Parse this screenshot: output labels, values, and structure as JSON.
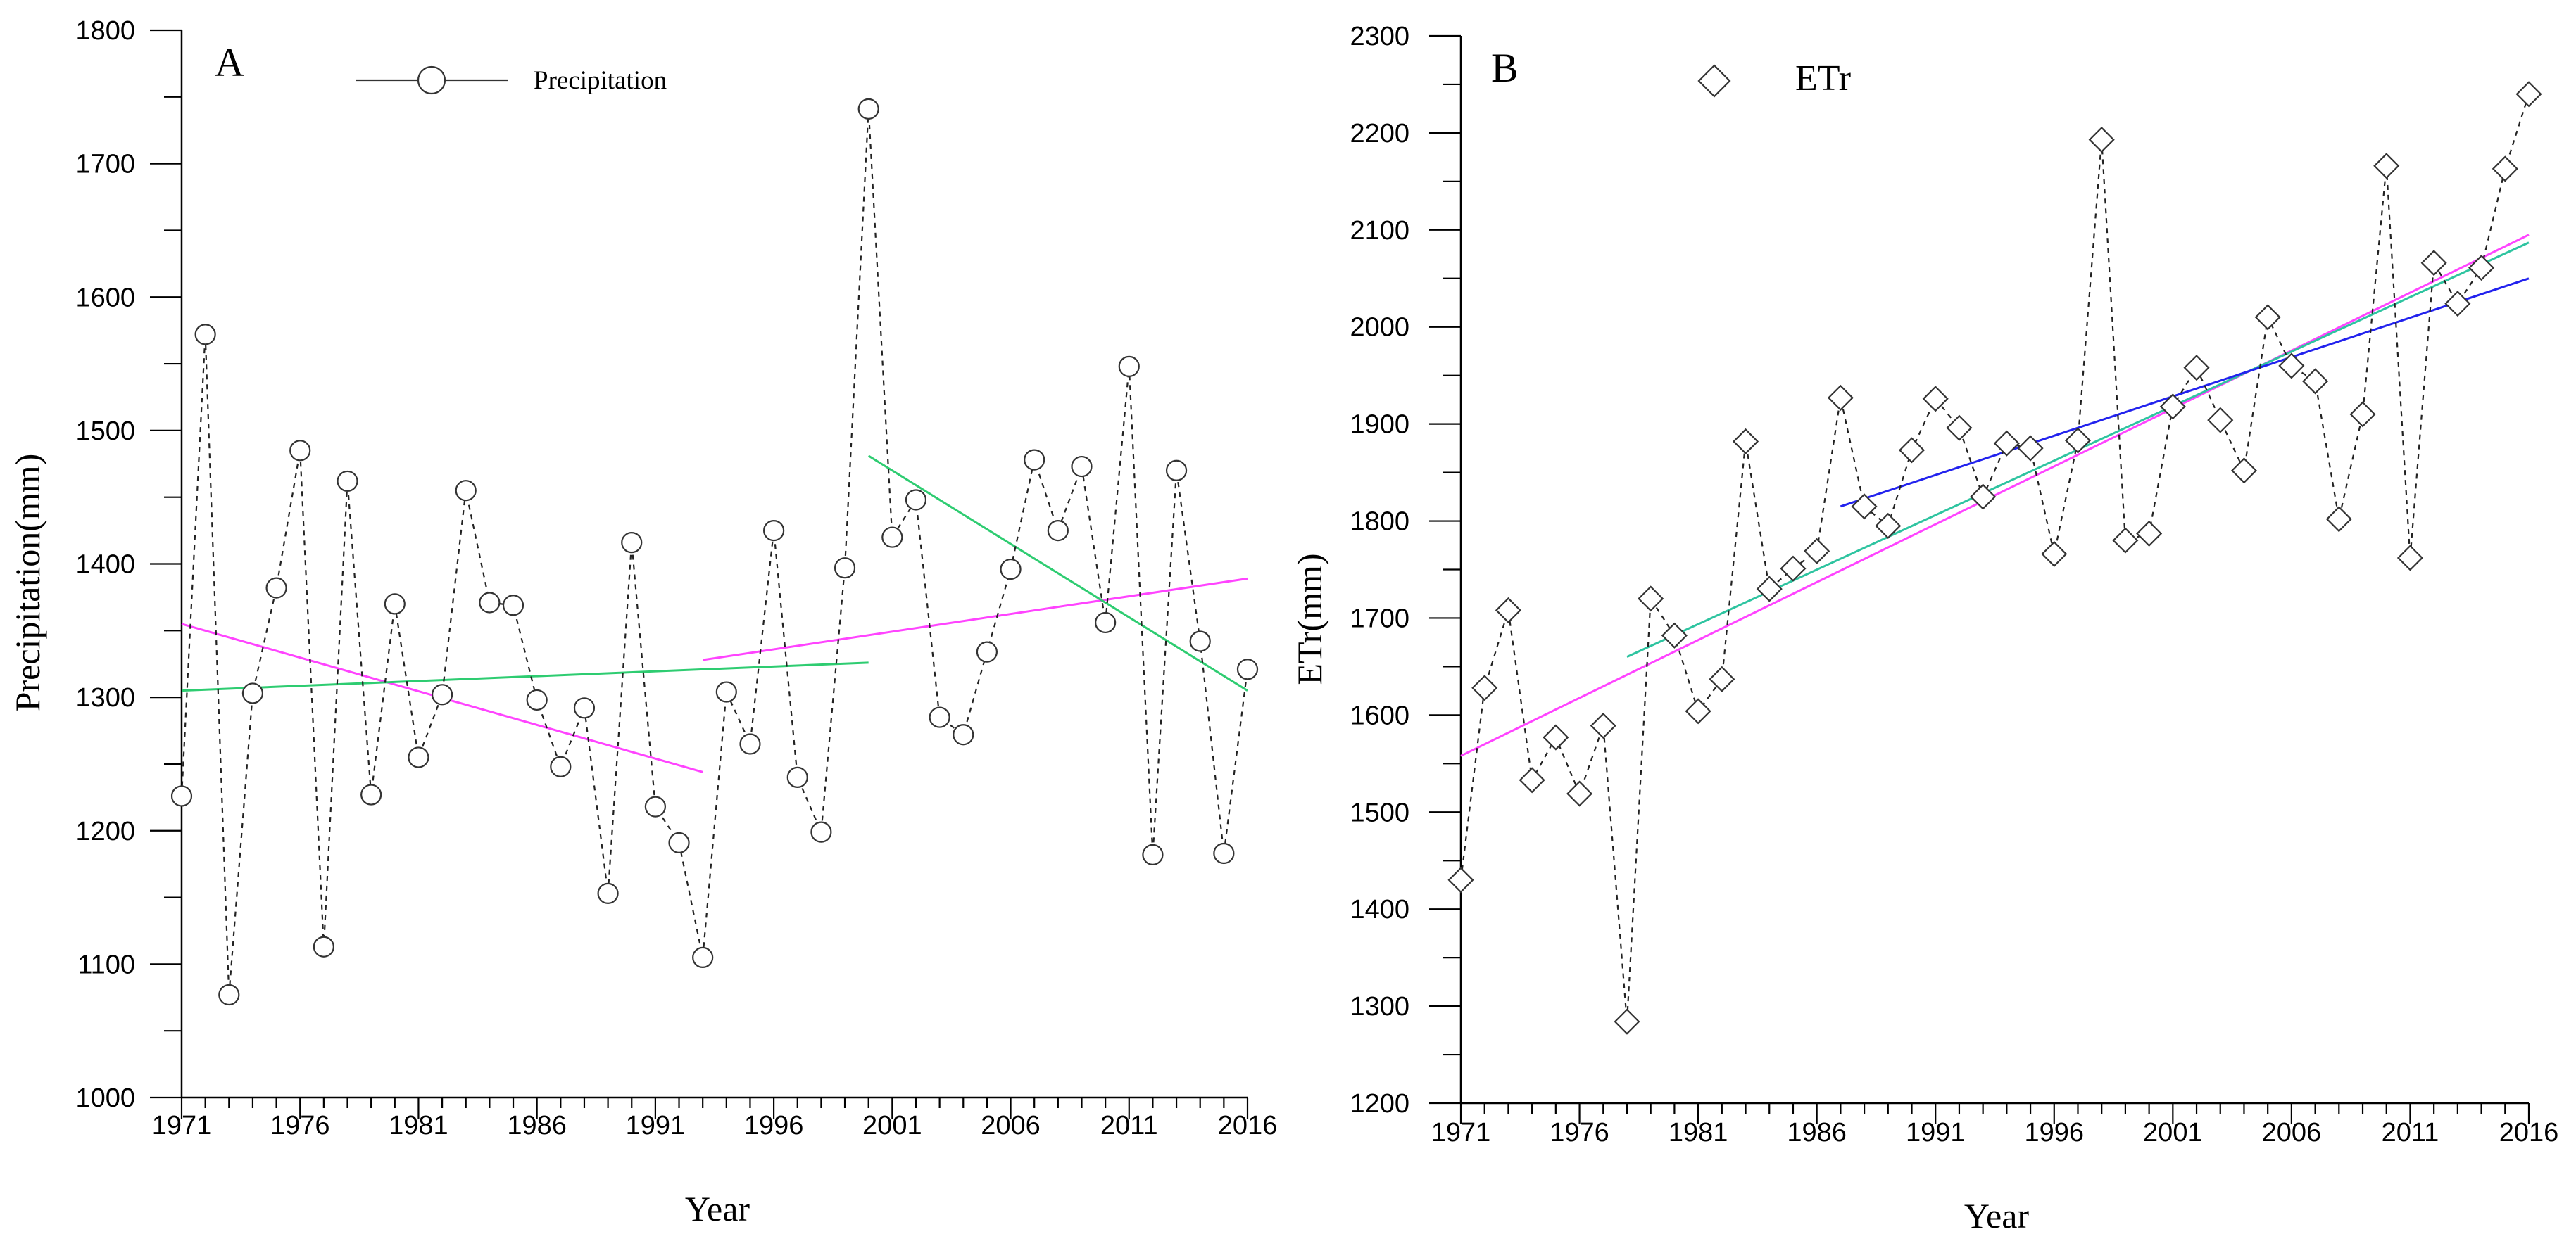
{
  "chart_data": [
    {
      "panel": "A",
      "type": "line",
      "xlabel": "Year",
      "ylabel": "Precipitation(mm)",
      "xlim": [
        1971,
        2016
      ],
      "ylim": [
        1000,
        1800
      ],
      "xticks": [
        1971,
        1976,
        1981,
        1986,
        1991,
        1996,
        2001,
        2006,
        2011,
        2016
      ],
      "yticks": [
        1000,
        1100,
        1200,
        1300,
        1400,
        1500,
        1600,
        1700,
        1800
      ],
      "legend": {
        "label": "Precipitation",
        "marker": "circle",
        "position": "top-center"
      },
      "series": [
        {
          "name": "Precipitation",
          "marker": "circle",
          "line_style": "dashed",
          "x": [
            1971,
            1972,
            1973,
            1974,
            1975,
            1976,
            1977,
            1978,
            1979,
            1980,
            1981,
            1982,
            1983,
            1984,
            1985,
            1986,
            1987,
            1988,
            1989,
            1990,
            1991,
            1992,
            1993,
            1994,
            1995,
            1996,
            1997,
            1998,
            1999,
            2000,
            2001,
            2002,
            2003,
            2004,
            2005,
            2006,
            2007,
            2008,
            2009,
            2010,
            2011,
            2012,
            2013,
            2014,
            2015,
            2016
          ],
          "values": [
            1226,
            1572,
            1077,
            1303,
            1382,
            1485,
            1113,
            1462,
            1227,
            1370,
            1255,
            1302,
            1455,
            1371,
            1369,
            1298,
            1248,
            1292,
            1153,
            1416,
            1218,
            1191,
            1105,
            1304,
            1265,
            1425,
            1240,
            1199,
            1397,
            1741,
            1420,
            1448,
            1285,
            1272,
            1334,
            1396,
            1478,
            1425,
            1473,
            1356,
            1548,
            1182,
            1470,
            1342,
            1183,
            1321
          ]
        }
      ],
      "trend_lines": [
        {
          "name": "trend-1971-1993",
          "color": "#ff44ff",
          "x": [
            1971,
            1993
          ],
          "y": [
            1355,
            1244
          ]
        },
        {
          "name": "trend-1971-2000",
          "color": "#2ecc71",
          "x": [
            1971,
            2000
          ],
          "y": [
            1305,
            1326
          ]
        },
        {
          "name": "trend-1993-2016",
          "color": "#ff44ff",
          "x": [
            1993,
            2016
          ],
          "y": [
            1328,
            1389
          ]
        },
        {
          "name": "trend-2000-2016",
          "color": "#2ecc71",
          "x": [
            2000,
            2016
          ],
          "y": [
            1481,
            1305
          ]
        }
      ]
    },
    {
      "panel": "B",
      "type": "line",
      "xlabel": "Year",
      "ylabel": "ETr(mm)",
      "xlim": [
        1971,
        2016
      ],
      "ylim": [
        1200,
        2300
      ],
      "xticks": [
        1971,
        1976,
        1981,
        1986,
        1991,
        1996,
        2001,
        2006,
        2011,
        2016
      ],
      "yticks": [
        1200,
        1300,
        1400,
        1500,
        1600,
        1700,
        1800,
        1900,
        2000,
        2100,
        2200,
        2300
      ],
      "legend": {
        "label": "ETr",
        "marker": "diamond",
        "position": "top-left"
      },
      "series": [
        {
          "name": "ETr",
          "marker": "diamond",
          "line_style": "dashed",
          "x": [
            1971,
            1972,
            1973,
            1974,
            1975,
            1976,
            1977,
            1978,
            1979,
            1980,
            1981,
            1982,
            1983,
            1984,
            1985,
            1986,
            1987,
            1988,
            1989,
            1990,
            1991,
            1992,
            1993,
            1994,
            1995,
            1996,
            1997,
            1998,
            1999,
            2000,
            2001,
            2002,
            2003,
            2004,
            2005,
            2006,
            2007,
            2008,
            2009,
            2010,
            2011,
            2012,
            2013,
            2014,
            2015,
            2016
          ],
          "values": [
            1430,
            1628,
            1708,
            1533,
            1577,
            1519,
            1589,
            1284,
            1720,
            1682,
            1604,
            1637,
            1882,
            1730,
            1751,
            1769,
            1927,
            1815,
            1795,
            1873,
            1926,
            1896,
            1825,
            1880,
            1875,
            1766,
            1883,
            2193,
            1780,
            1787,
            1918,
            1958,
            1904,
            1852,
            2010,
            1960,
            1944,
            1802,
            1910,
            2166,
            1762,
            2066,
            2024,
            2061,
            2163,
            2240
          ]
        }
      ],
      "trend_lines": [
        {
          "name": "trend-1971-2016",
          "color": "#ff44ff",
          "x": [
            1971,
            2016
          ],
          "y": [
            1558,
            2095
          ]
        },
        {
          "name": "trend-1978-2016",
          "color": "#2ec4a0",
          "x": [
            1978,
            2016
          ],
          "y": [
            1660,
            2087
          ]
        },
        {
          "name": "trend-1987-2016",
          "color": "#2222ee",
          "x": [
            1987,
            2016
          ],
          "y": [
            1815,
            2050
          ]
        }
      ]
    }
  ]
}
